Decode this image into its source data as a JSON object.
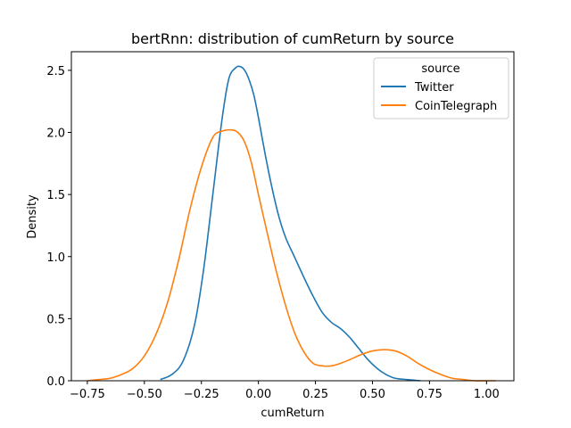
{
  "chart_data": {
    "type": "line",
    "title": "bertRnn: distribution of cumReturn by source",
    "xlabel": "cumReturn",
    "ylabel": "Density",
    "xlim": [
      -0.82,
      1.12
    ],
    "ylim": [
      0,
      2.65
    ],
    "xticks": [
      -0.75,
      -0.5,
      -0.25,
      0.0,
      0.25,
      0.5,
      0.75,
      1.0
    ],
    "xtick_labels": [
      "−0.75",
      "−0.50",
      "−0.25",
      "0.00",
      "0.25",
      "0.50",
      "0.75",
      "1.00"
    ],
    "yticks": [
      0.0,
      0.5,
      1.0,
      1.5,
      2.0,
      2.5
    ],
    "ytick_labels": [
      "0.0",
      "0.5",
      "1.0",
      "1.5",
      "2.0",
      "2.5"
    ],
    "grid": false,
    "legend": {
      "title": "source",
      "position": "upper-right"
    },
    "series": [
      {
        "name": "Twitter",
        "color": "#1f77b4",
        "x": [
          -0.43,
          -0.38,
          -0.33,
          -0.28,
          -0.24,
          -0.2,
          -0.16,
          -0.13,
          -0.1,
          -0.08,
          -0.06,
          -0.04,
          -0.02,
          0.0,
          0.03,
          0.06,
          0.09,
          0.12,
          0.16,
          0.2,
          0.24,
          0.28,
          0.32,
          0.36,
          0.4,
          0.44,
          0.48,
          0.52,
          0.56,
          0.6,
          0.65,
          0.71
        ],
        "y": [
          0.01,
          0.05,
          0.16,
          0.45,
          0.9,
          1.5,
          2.1,
          2.43,
          2.52,
          2.53,
          2.5,
          2.42,
          2.3,
          2.12,
          1.82,
          1.55,
          1.32,
          1.15,
          0.99,
          0.83,
          0.68,
          0.55,
          0.47,
          0.42,
          0.35,
          0.26,
          0.17,
          0.1,
          0.05,
          0.02,
          0.01,
          0.0
        ]
      },
      {
        "name": "CoinTelegraph",
        "color": "#ff7f0e",
        "x": [
          -0.75,
          -0.7,
          -0.65,
          -0.6,
          -0.55,
          -0.5,
          -0.45,
          -0.4,
          -0.35,
          -0.3,
          -0.25,
          -0.2,
          -0.16,
          -0.12,
          -0.09,
          -0.06,
          -0.03,
          0.0,
          0.04,
          0.08,
          0.12,
          0.16,
          0.2,
          0.24,
          0.28,
          0.32,
          0.36,
          0.4,
          0.45,
          0.5,
          0.55,
          0.6,
          0.65,
          0.7,
          0.75,
          0.8,
          0.85,
          0.9,
          0.95,
          1.0,
          1.04
        ],
        "y": [
          0.0,
          0.01,
          0.02,
          0.05,
          0.1,
          0.2,
          0.37,
          0.62,
          0.97,
          1.38,
          1.72,
          1.96,
          2.01,
          2.02,
          2.0,
          1.92,
          1.75,
          1.5,
          1.18,
          0.87,
          0.6,
          0.38,
          0.23,
          0.14,
          0.12,
          0.12,
          0.14,
          0.17,
          0.21,
          0.24,
          0.25,
          0.24,
          0.2,
          0.14,
          0.09,
          0.05,
          0.02,
          0.01,
          0.0,
          0.0,
          0.0
        ]
      }
    ]
  }
}
